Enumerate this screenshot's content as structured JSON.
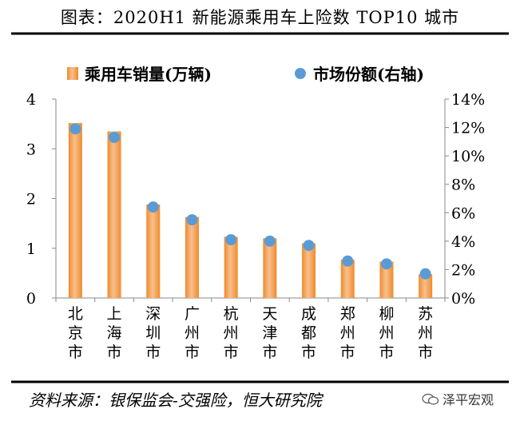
{
  "title": "图表：2020H1 新能源乘用车上险数 TOP10 城市",
  "source": "资料来源：银保监会-交强险，恒大研究院",
  "watermark": "泽平宏观",
  "chart_data": {
    "type": "bar",
    "categories": [
      "北京市",
      "上海市",
      "深圳市",
      "广州市",
      "杭州市",
      "天津市",
      "成都市",
      "郑州市",
      "柳州市",
      "苏州市"
    ],
    "series": [
      {
        "name": "乘用车销量(万辆)",
        "kind": "bar",
        "axis": "left",
        "values": [
          3.52,
          3.35,
          1.88,
          1.63,
          1.23,
          1.2,
          1.1,
          0.77,
          0.73,
          0.48
        ]
      },
      {
        "name": "市场份额(右轴)",
        "kind": "scatter",
        "axis": "right",
        "values": [
          11.9,
          11.3,
          6.4,
          5.5,
          4.1,
          4.0,
          3.7,
          2.6,
          2.4,
          1.7
        ]
      }
    ],
    "ylim_left": [
      0,
      4
    ],
    "yticks_left": [
      "0",
      "1",
      "2",
      "3",
      "4"
    ],
    "ylim_right": [
      0,
      14
    ],
    "yticks_right": [
      "0%",
      "2%",
      "4%",
      "6%",
      "8%",
      "10%",
      "12%",
      "14%"
    ],
    "legend_position": "top",
    "grid": false,
    "colors": {
      "bar": "#f08a2c",
      "bar_light": "#f8c08e",
      "dot": "#5b9bd5"
    }
  }
}
